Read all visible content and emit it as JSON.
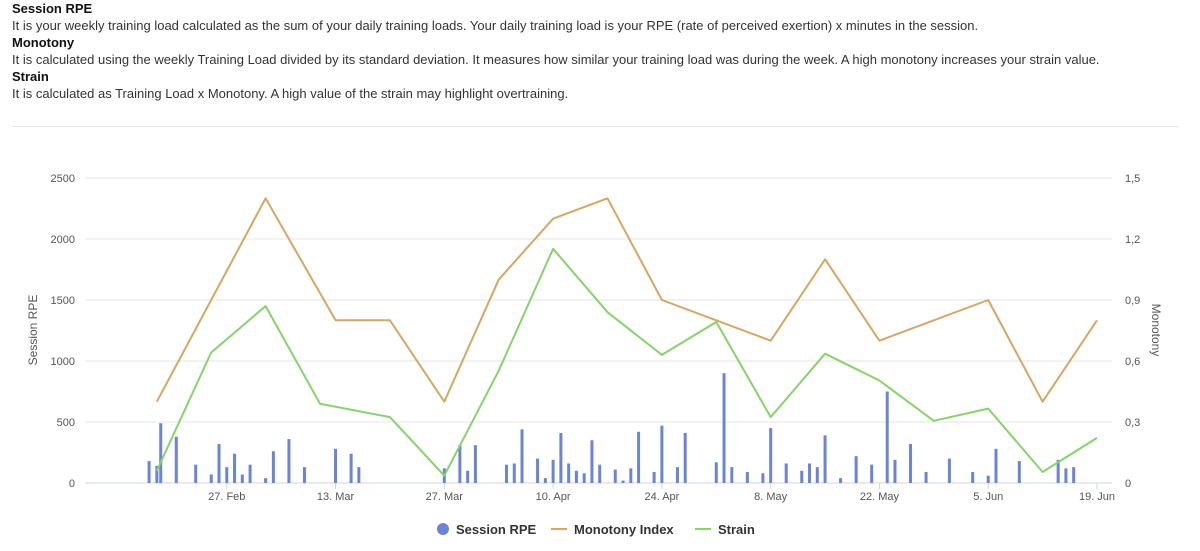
{
  "descriptions": [
    {
      "title": "Session RPE",
      "text": "It is your weekly training load calculated as the sum of your daily training loads. Your daily training load is your RPE (rate of perceived exertion) x minutes in the session."
    },
    {
      "title": "Monotony",
      "text": "It is calculated using the weekly Training Load divided by its standard deviation. It measures how similar your training load was during the week. A high monotony increases your strain value."
    },
    {
      "title": "Strain",
      "text": "It is calculated as Training Load x Monotony. A high value of the strain may highlight overtraining."
    }
  ],
  "chart_data": {
    "type": "bar+line",
    "xlabels": [
      "27. Feb",
      "13. Mar",
      "27. Mar",
      "10. Apr",
      "24. Apr",
      "8. May",
      "22. May",
      "5. Jun",
      "19. Jun"
    ],
    "xlabel_days": [
      14,
      28,
      42,
      56,
      70,
      84,
      98,
      112,
      126
    ],
    "xrange_days": [
      0,
      126
    ],
    "y_left": {
      "title": "Session RPE",
      "min": 0,
      "max": 2500,
      "ticks": [
        "0",
        "500",
        "1000",
        "1500",
        "2000",
        "2500"
      ],
      "tick_values": [
        0,
        500,
        1000,
        1500,
        2000,
        2500
      ]
    },
    "y_right": {
      "title": "Monotony",
      "min": 0,
      "max": 1.5,
      "ticks": [
        "0",
        "0,3",
        "0,6",
        "0,9",
        "1,2",
        "1,5"
      ],
      "tick_values": [
        0,
        0.3,
        0.6,
        0.9,
        1.2,
        1.5
      ]
    },
    "series": [
      {
        "name": "Session RPE",
        "type": "bar",
        "axis": "left",
        "color": "#6c84d4",
        "points": [
          [
            4,
            180
          ],
          [
            5,
            140
          ],
          [
            5.5,
            490
          ],
          [
            7.5,
            380
          ],
          [
            10,
            150
          ],
          [
            12,
            70
          ],
          [
            13,
            320
          ],
          [
            14,
            130
          ],
          [
            15,
            240
          ],
          [
            16,
            70
          ],
          [
            17,
            150
          ],
          [
            19,
            40
          ],
          [
            20,
            260
          ],
          [
            22,
            360
          ],
          [
            24,
            130
          ],
          [
            28,
            280
          ],
          [
            30,
            240
          ],
          [
            31,
            130
          ],
          [
            42,
            120
          ],
          [
            44,
            310
          ],
          [
            45,
            100
          ],
          [
            46,
            310
          ],
          [
            50,
            150
          ],
          [
            51,
            160
          ],
          [
            52,
            440
          ],
          [
            54,
            200
          ],
          [
            55,
            40
          ],
          [
            56,
            190
          ],
          [
            57,
            410
          ],
          [
            58,
            160
          ],
          [
            59,
            100
          ],
          [
            60,
            80
          ],
          [
            61,
            350
          ],
          [
            62,
            150
          ],
          [
            64,
            110
          ],
          [
            65,
            20
          ],
          [
            66,
            120
          ],
          [
            67,
            420
          ],
          [
            69,
            90
          ],
          [
            70,
            470
          ],
          [
            72,
            130
          ],
          [
            73,
            410
          ],
          [
            77,
            170
          ],
          [
            78,
            900
          ],
          [
            79,
            130
          ],
          [
            81,
            90
          ],
          [
            83,
            80
          ],
          [
            84,
            450
          ],
          [
            86,
            160
          ],
          [
            88,
            100
          ],
          [
            89,
            160
          ],
          [
            90,
            130
          ],
          [
            91,
            390
          ],
          [
            93,
            40
          ],
          [
            95,
            220
          ],
          [
            97,
            150
          ],
          [
            99,
            750
          ],
          [
            100,
            190
          ],
          [
            102,
            320
          ],
          [
            104,
            90
          ],
          [
            107,
            200
          ],
          [
            110,
            90
          ],
          [
            112,
            60
          ],
          [
            113,
            280
          ],
          [
            116,
            180
          ],
          [
            121,
            190
          ],
          [
            122,
            120
          ],
          [
            123,
            130
          ]
        ]
      },
      {
        "name": "Monotony Index",
        "type": "line",
        "axis": "right",
        "color": "#d4a763",
        "points": [
          [
            5,
            0.4
          ],
          [
            19,
            1.4
          ],
          [
            28,
            0.8
          ],
          [
            35,
            0.8
          ],
          [
            42,
            0.4
          ],
          [
            49,
            1.0
          ],
          [
            56,
            1.3
          ],
          [
            63,
            1.4
          ],
          [
            70,
            0.9
          ],
          [
            84,
            0.7
          ],
          [
            91,
            1.1
          ],
          [
            98,
            0.7
          ],
          [
            112,
            0.9
          ],
          [
            119,
            0.4
          ],
          [
            126,
            0.8
          ]
        ]
      },
      {
        "name": "Strain",
        "type": "line",
        "axis": "left",
        "color": "#86d36a",
        "points": [
          [
            5,
            100
          ],
          [
            12,
            1070
          ],
          [
            19,
            1450
          ],
          [
            26,
            650
          ],
          [
            35,
            540
          ],
          [
            42,
            60
          ],
          [
            49,
            920
          ],
          [
            56,
            1920
          ],
          [
            63,
            1400
          ],
          [
            70,
            1050
          ],
          [
            77,
            1320
          ],
          [
            84,
            540
          ],
          [
            91,
            1060
          ],
          [
            98,
            840
          ],
          [
            105,
            510
          ],
          [
            112,
            610
          ],
          [
            119,
            90
          ],
          [
            126,
            370
          ]
        ]
      }
    ],
    "legend": {
      "position": "bottom",
      "items": [
        "Session RPE",
        "Monotony Index",
        "Strain"
      ]
    }
  }
}
